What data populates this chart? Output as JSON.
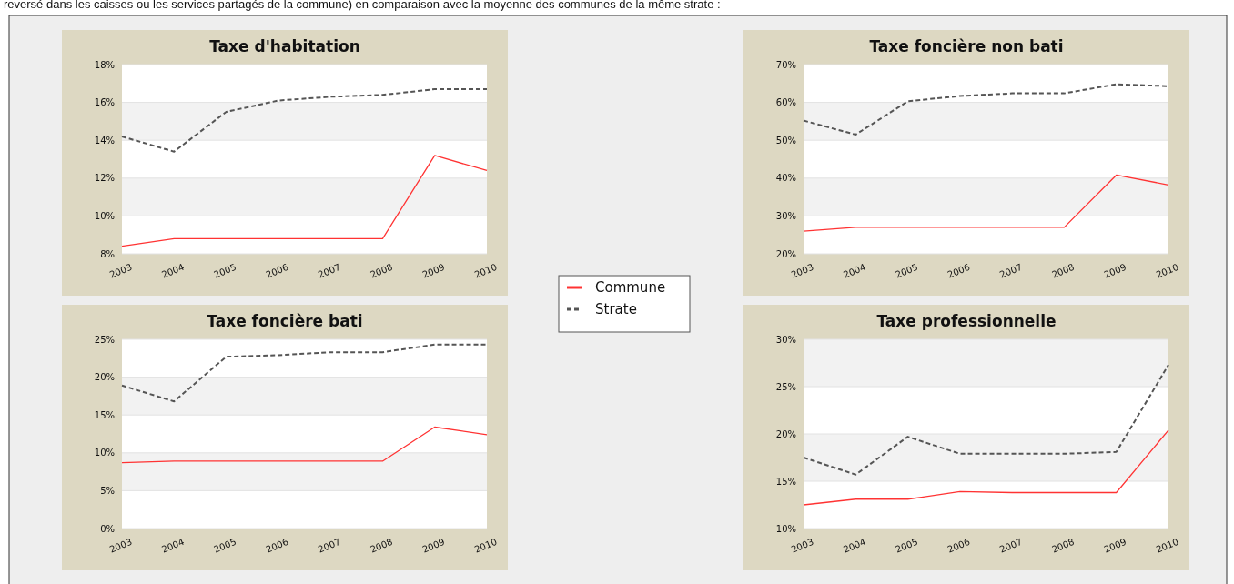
{
  "chart_data": [
    {
      "type": "line",
      "title": "Taxe d'habitation",
      "annotations": [
        "reversé dans les caisses ou les services partagés de la commune) en comparaison avec la moyenne des communes de la même strate :"
      ],
      "categories": [
        "2003",
        "2004",
        "2005",
        "2006",
        "2007",
        "2008",
        "2009",
        "2010"
      ],
      "ylim": [
        8,
        18
      ],
      "yticks": [
        {
          "value": 8,
          "label": "8%"
        },
        {
          "value": 10,
          "label": "10%"
        },
        {
          "value": 12,
          "label": "12%"
        },
        {
          "value": 14,
          "label": "14%"
        },
        {
          "value": 16,
          "label": "16%"
        },
        {
          "value": 18,
          "label": "18%"
        }
      ],
      "grid": "y",
      "legend": "right",
      "marker": "none",
      "series": [
        {
          "name": "Commune",
          "color": "#ff3333",
          "line_style": "solid",
          "values": [
            8.4,
            8.8,
            8.8,
            8.8,
            8.8,
            8.8,
            13.2,
            12.4
          ]
        },
        {
          "name": "Strate",
          "color": "#555555",
          "line_style": "dashed",
          "values": [
            14.2,
            13.4,
            15.5,
            16.1,
            16.3,
            16.4,
            16.7,
            16.7
          ]
        }
      ]
    },
    {
      "type": "line",
      "title": "Taxe foncière non bati",
      "categories": [
        "2003",
        "2004",
        "2005",
        "2006",
        "2007",
        "2008",
        "2009",
        "2010"
      ],
      "ylim": [
        20,
        70
      ],
      "yticks": [
        {
          "value": 20,
          "label": "20%"
        },
        {
          "value": 30,
          "label": "30%"
        },
        {
          "value": 40,
          "label": "40%"
        },
        {
          "value": 50,
          "label": "50%"
        },
        {
          "value": 60,
          "label": "60%"
        },
        {
          "value": 70,
          "label": "70%"
        }
      ],
      "grid": "y",
      "marker": "none",
      "series": [
        {
          "color": "#ff3333",
          "line_style": "solid",
          "values": [
            26,
            27,
            27,
            27,
            27,
            27,
            40.8,
            38.2
          ]
        },
        {
          "color": "#555555",
          "line_style": "dashed",
          "values": [
            55.2,
            51.5,
            60.3,
            61.7,
            62.4,
            62.4,
            64.8,
            64.3
          ]
        }
      ]
    },
    {
      "type": "line",
      "title": "Taxe foncière bati",
      "categories": [
        "2003",
        "2004",
        "2005",
        "2006",
        "2007",
        "2008",
        "2009",
        "2010"
      ],
      "ylim": [
        0,
        25
      ],
      "yticks": [
        {
          "value": 0,
          "label": "0%"
        },
        {
          "value": 5,
          "label": "5%"
        },
        {
          "value": 10,
          "label": "10%"
        },
        {
          "value": 15,
          "label": "15%"
        },
        {
          "value": 20,
          "label": "20%"
        },
        {
          "value": 25,
          "label": "25%"
        }
      ],
      "grid": "y",
      "marker": "none",
      "series": [
        {
          "color": "#ff3333",
          "line_style": "solid",
          "values": [
            8.7,
            8.9,
            8.9,
            8.9,
            8.9,
            8.9,
            13.4,
            12.4
          ]
        },
        {
          "color": "#555555",
          "line_style": "dashed",
          "values": [
            18.9,
            16.8,
            22.7,
            22.9,
            23.3,
            23.3,
            24.3,
            24.3
          ]
        }
      ]
    },
    {
      "type": "line",
      "title": "Taxe professionnelle",
      "categories": [
        "2003",
        "2004",
        "2005",
        "2006",
        "2007",
        "2008",
        "2009",
        "2010"
      ],
      "ylim": [
        10,
        30
      ],
      "yticks": [
        {
          "value": 10,
          "label": "10%"
        },
        {
          "value": 15,
          "label": "15%"
        },
        {
          "value": 20,
          "label": "20%"
        },
        {
          "value": 25,
          "label": "25%"
        },
        {
          "value": 30,
          "label": "30%"
        }
      ],
      "grid": "y",
      "marker": "none",
      "series": [
        {
          "color": "#ff3333",
          "line_style": "solid",
          "values": [
            12.5,
            13.1,
            13.1,
            13.9,
            13.8,
            13.8,
            13.8,
            20.4
          ]
        },
        {
          "color": "#555555",
          "line_style": "dashed",
          "values": [
            17.5,
            15.7,
            19.7,
            17.9,
            17.9,
            17.9,
            18.1,
            27.3
          ]
        }
      ]
    }
  ]
}
